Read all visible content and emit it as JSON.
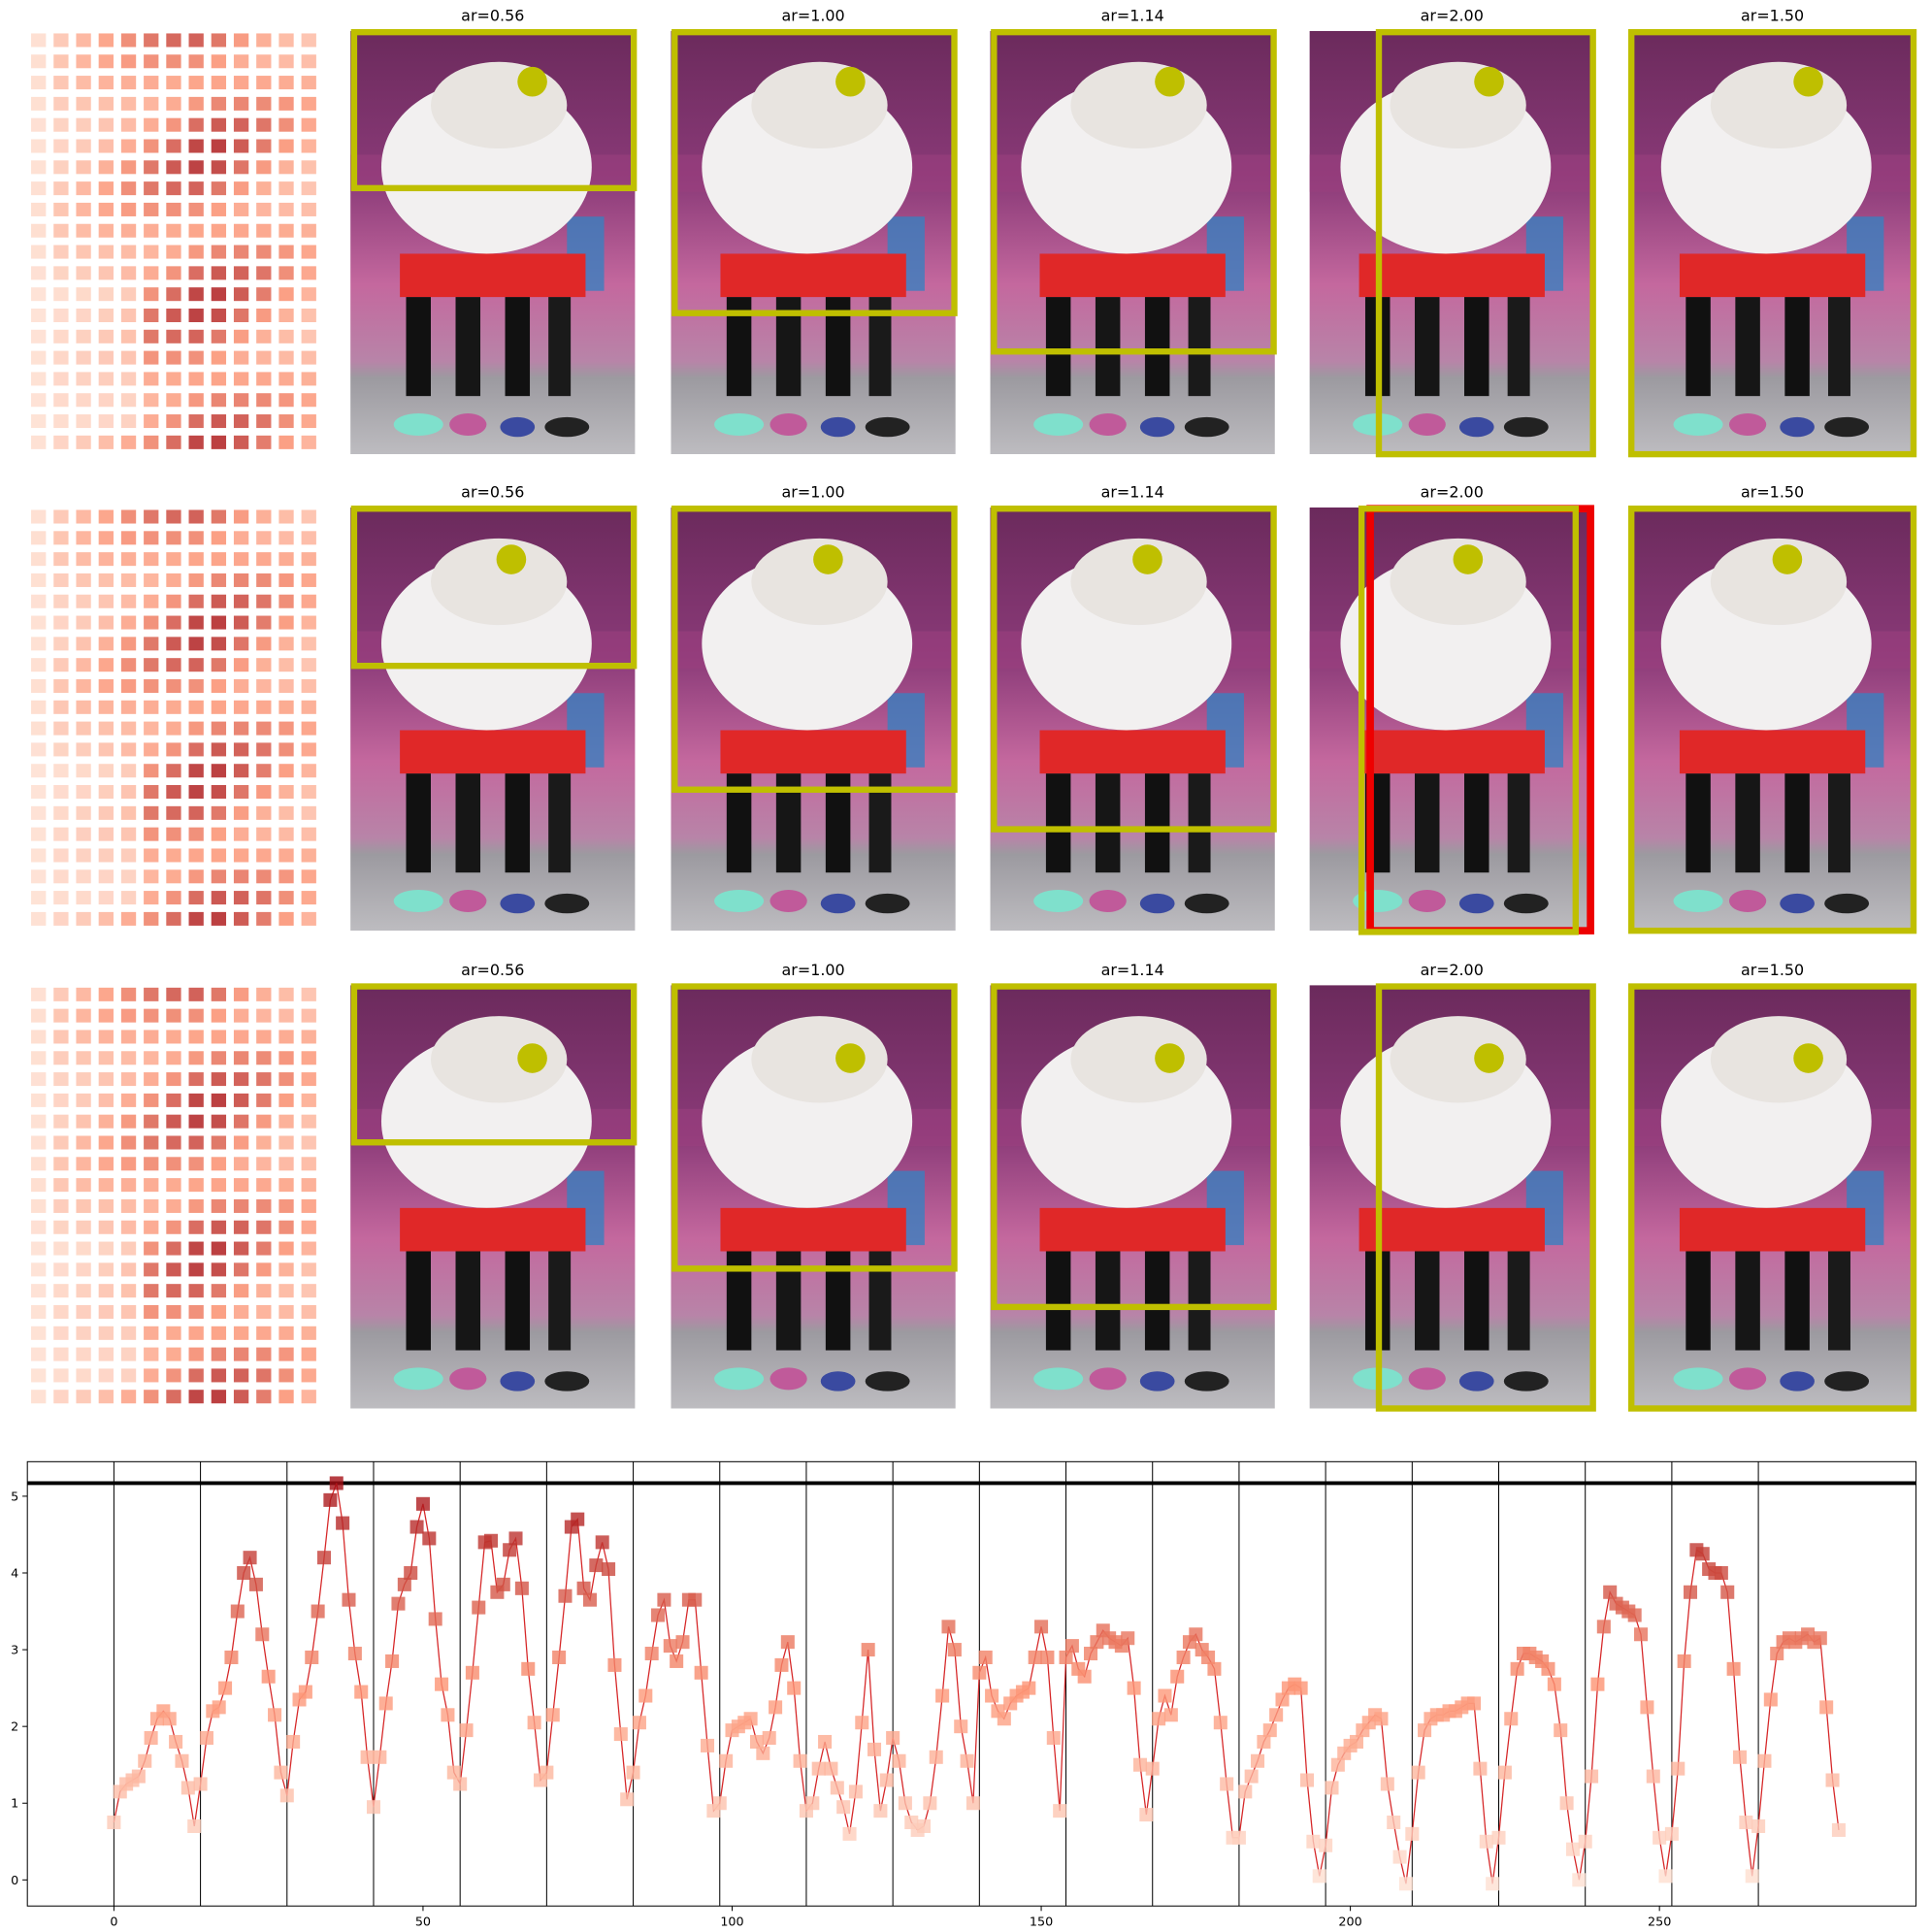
{
  "panel_grid": {
    "rows": [
      [
        "ar=0.56",
        "ar=1.00",
        "ar=1.14",
        "ar=2.00",
        "ar=1.50"
      ],
      [
        "ar=0.56",
        "ar=1.00",
        "ar=1.14",
        "ar=2.00",
        "ar=1.50"
      ],
      [
        "ar=0.56",
        "ar=1.00",
        "ar=1.14",
        "ar=2.00",
        "ar=1.50"
      ]
    ]
  },
  "chart_data": {
    "type": "line",
    "x": [
      0,
      1,
      2,
      3,
      4,
      5,
      6,
      7,
      8,
      9,
      10,
      11,
      12,
      13,
      14,
      15,
      16,
      17,
      18,
      19,
      20,
      21,
      22,
      23,
      24,
      25,
      26,
      27,
      28,
      29,
      30,
      31,
      32,
      33,
      34,
      35,
      36,
      37,
      38,
      39,
      40,
      41,
      42,
      43,
      44,
      45,
      46,
      47,
      48,
      49,
      50,
      51,
      52,
      53,
      54,
      55,
      56,
      57,
      58,
      59,
      60,
      61,
      62,
      63,
      64,
      65,
      66,
      67,
      68,
      69,
      70,
      71,
      72,
      73,
      74,
      75,
      76,
      77,
      78,
      79,
      80,
      81,
      82,
      83,
      84,
      85,
      86,
      87,
      88,
      89,
      90,
      91,
      92,
      93,
      94,
      95,
      96,
      97,
      98,
      99,
      100,
      101,
      102,
      103,
      104,
      105,
      106,
      107,
      108,
      109,
      110,
      111,
      112,
      113,
      114,
      115,
      116,
      117,
      118,
      119,
      120,
      121,
      122,
      123,
      124,
      125,
      126,
      127,
      128,
      129,
      130,
      131,
      132,
      133,
      134,
      135,
      136,
      137,
      138,
      139,
      140,
      141,
      142,
      143,
      144,
      145,
      146,
      147,
      148,
      149,
      150,
      151,
      152,
      153,
      154,
      155,
      156,
      157,
      158,
      159,
      160,
      161,
      162,
      163,
      164,
      165,
      166,
      167,
      168,
      169,
      170,
      171,
      172,
      173,
      174,
      175,
      176,
      177,
      178,
      179,
      180,
      181,
      182,
      183,
      184,
      185,
      186,
      187,
      188,
      189,
      190,
      191,
      192,
      193,
      194,
      195,
      196,
      197,
      198,
      199,
      200,
      201,
      202,
      203,
      204,
      205,
      206,
      207,
      208,
      209,
      210,
      211,
      212,
      213,
      214,
      215,
      216,
      217,
      218,
      219,
      220,
      221,
      222,
      223,
      224,
      225,
      226,
      227,
      228,
      229,
      230,
      231,
      232,
      233,
      234,
      235,
      236,
      237,
      238,
      239,
      240,
      241,
      242,
      243,
      244,
      245,
      246,
      247,
      248,
      249,
      250,
      251,
      252,
      253,
      254,
      255,
      256,
      257,
      258,
      259,
      260,
      261,
      262,
      263,
      264,
      265,
      266,
      267,
      268,
      269,
      270,
      271,
      272,
      273,
      274,
      275,
      276,
      277,
      278,
      279
    ],
    "values": [
      0.75,
      1.15,
      1.25,
      1.3,
      1.35,
      1.55,
      1.85,
      2.1,
      2.2,
      2.1,
      1.8,
      1.55,
      1.2,
      0.7,
      1.25,
      1.85,
      2.2,
      2.25,
      2.5,
      2.9,
      3.5,
      4.0,
      4.2,
      3.85,
      3.2,
      2.65,
      2.15,
      1.4,
      1.1,
      1.8,
      2.35,
      2.45,
      2.9,
      3.5,
      4.2,
      4.95,
      5.17,
      4.65,
      3.65,
      2.95,
      2.45,
      1.6,
      0.95,
      1.6,
      2.3,
      2.85,
      3.6,
      3.85,
      4.0,
      4.6,
      4.9,
      4.45,
      3.4,
      2.55,
      2.15,
      1.4,
      1.25,
      1.95,
      2.7,
      3.55,
      4.4,
      4.42,
      3.75,
      3.85,
      4.3,
      4.45,
      3.8,
      2.75,
      2.05,
      1.3,
      1.4,
      2.15,
      2.9,
      3.7,
      4.6,
      4.7,
      3.8,
      3.65,
      4.1,
      4.4,
      4.05,
      2.8,
      1.9,
      1.05,
      1.4,
      2.05,
      2.4,
      2.95,
      3.45,
      3.65,
      3.05,
      2.85,
      3.1,
      3.65,
      3.65,
      2.7,
      1.75,
      0.9,
      1.0,
      1.55,
      1.95,
      2.0,
      2.05,
      2.1,
      1.8,
      1.65,
      1.85,
      2.25,
      2.8,
      3.1,
      2.5,
      1.55,
      0.9,
      1.0,
      1.45,
      1.8,
      1.45,
      1.2,
      0.95,
      0.6,
      1.15,
      2.05,
      3.0,
      1.7,
      0.9,
      1.3,
      1.85,
      1.55,
      1.0,
      0.75,
      0.65,
      0.7,
      1.0,
      1.6,
      2.4,
      3.3,
      3.0,
      2.0,
      1.55,
      1.0,
      2.7,
      2.9,
      2.4,
      2.2,
      2.1,
      2.3,
      2.4,
      2.45,
      2.5,
      2.9,
      3.3,
      2.9,
      1.85,
      0.9,
      2.9,
      3.05,
      2.75,
      2.65,
      2.95,
      3.1,
      3.25,
      3.15,
      3.1,
      3.05,
      3.15,
      2.5,
      1.5,
      0.85,
      1.45,
      2.1,
      2.4,
      2.15,
      2.65,
      2.9,
      3.1,
      3.2,
      3.0,
      2.9,
      2.75,
      2.05,
      1.25,
      0.55,
      0.55,
      1.15,
      1.35,
      1.55,
      1.8,
      1.95,
      2.15,
      2.35,
      2.5,
      2.55,
      2.5,
      1.3,
      0.5,
      0.05,
      0.45,
      1.2,
      1.5,
      1.65,
      1.75,
      1.8,
      1.95,
      2.05,
      2.15,
      2.1,
      1.25,
      0.75,
      0.3,
      -0.05,
      0.6,
      1.4,
      1.95,
      2.1,
      2.15,
      2.15,
      2.2,
      2.2,
      2.25,
      2.3,
      2.3,
      1.45,
      0.5,
      -0.05,
      0.55,
      1.4,
      2.1,
      2.75,
      2.95,
      2.95,
      2.9,
      2.85,
      2.75,
      2.55,
      1.95,
      1.0,
      0.4,
      0.0,
      0.5,
      1.35,
      2.55,
      3.3,
      3.75,
      3.6,
      3.55,
      3.5,
      3.45,
      3.2,
      2.25,
      1.35,
      0.55,
      0.05,
      0.6,
      1.45,
      2.85,
      3.75,
      4.3,
      4.25,
      4.05,
      4.0,
      4.0,
      3.75,
      2.75,
      1.6,
      0.75,
      0.05,
      0.7,
      1.55,
      2.35,
      2.95,
      3.1,
      3.15,
      3.1,
      3.15,
      3.2,
      3.1,
      3.15,
      2.25,
      1.3,
      0.65
    ],
    "color": "#d62728",
    "vlines": [
      0,
      14,
      28,
      42,
      56,
      70,
      84,
      98,
      112,
      126,
      140,
      154,
      168,
      182,
      196,
      210,
      224,
      238,
      252,
      266
    ],
    "xlim": [
      -14,
      291.5
    ],
    "ylim": [
      -0.34,
      5.45
    ],
    "xticks": [
      0,
      50,
      100,
      150,
      200,
      250
    ],
    "yticks": [
      0,
      1,
      2,
      3,
      4,
      5
    ]
  }
}
